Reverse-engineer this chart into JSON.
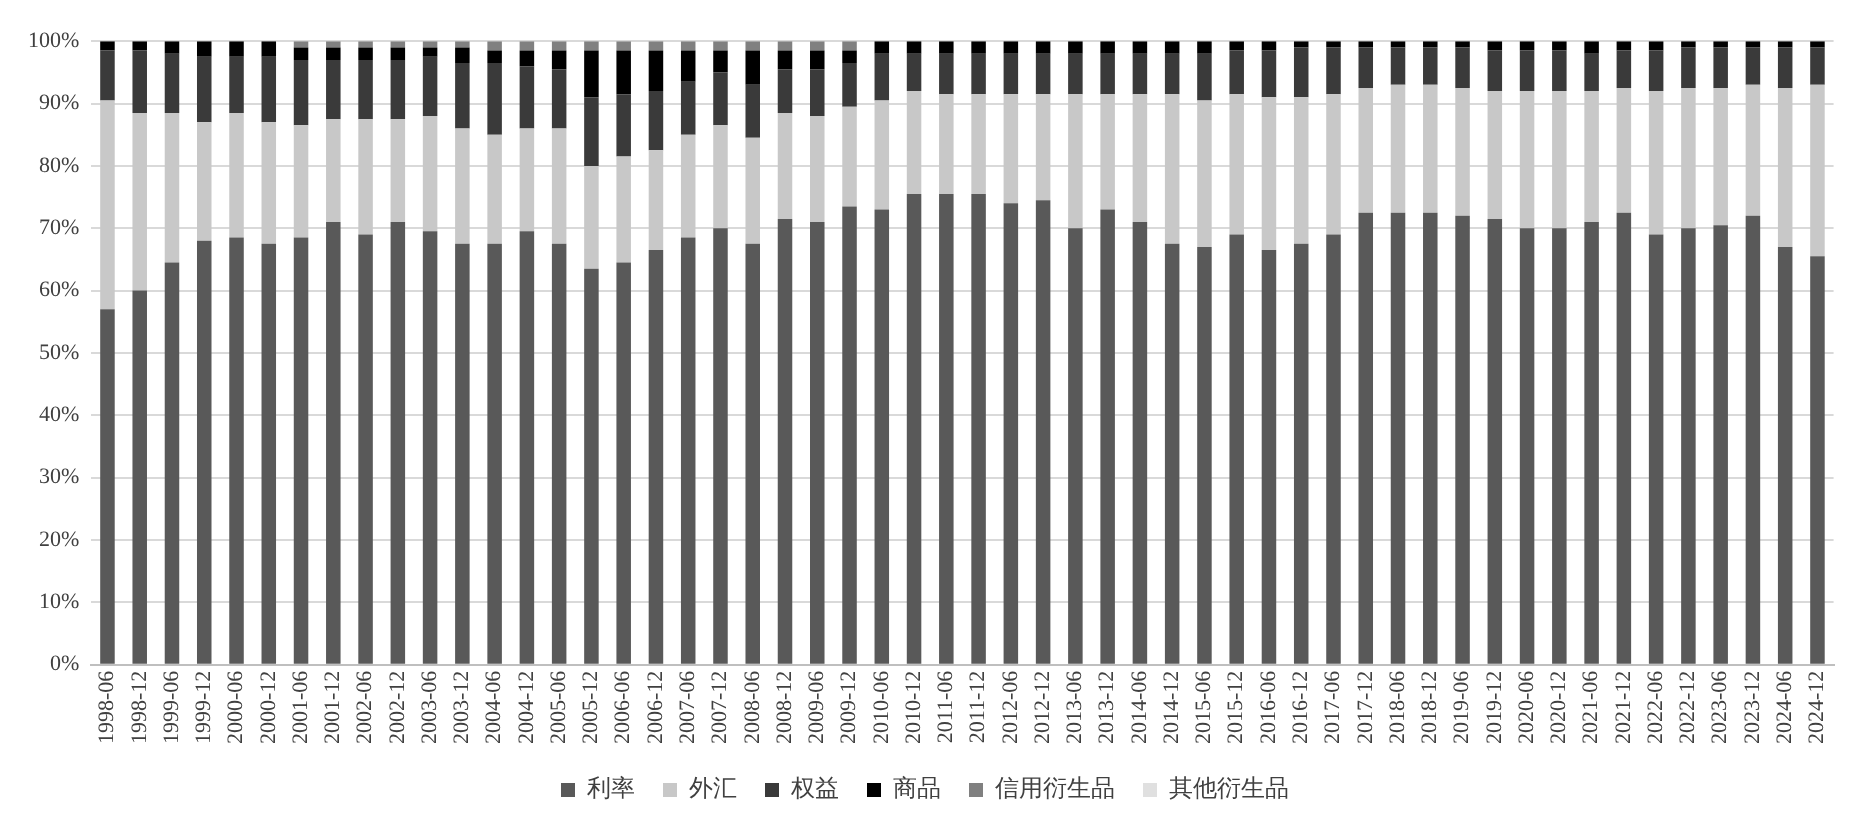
{
  "chart_data": {
    "type": "bar",
    "stacked": true,
    "legend": "bottom",
    "grid": "y",
    "categories": [
      "1998-06",
      "1998-12",
      "1999-06",
      "1999-12",
      "2000-06",
      "2000-12",
      "2001-06",
      "2001-12",
      "2002-06",
      "2002-12",
      "2003-06",
      "2003-12",
      "2004-06",
      "2004-12",
      "2005-06",
      "2005-12",
      "2006-06",
      "2006-12",
      "2007-06",
      "2007-12",
      "2008-06",
      "2008-12",
      "2009-06",
      "2009-12",
      "2010-06",
      "2010-12",
      "2011-06",
      "2011-12",
      "2012-06",
      "2012-12",
      "2013-06",
      "2013-12",
      "2014-06",
      "2014-12",
      "2015-06",
      "2015-12",
      "2016-06",
      "2016-12",
      "2017-06",
      "2017-12",
      "2018-06",
      "2018-12",
      "2019-06",
      "2019-12",
      "2020-06",
      "2020-12",
      "2021-06",
      "2021-12",
      "2022-06",
      "2022-12",
      "2023-06",
      "2023-12",
      "2024-06",
      "2024-12"
    ],
    "ylim": [
      0,
      100
    ],
    "yticks": [
      {
        "value": 0,
        "label": "0%"
      },
      {
        "value": 10,
        "label": "10%"
      },
      {
        "value": 20,
        "label": "20%"
      },
      {
        "value": 30,
        "label": "30%"
      },
      {
        "value": 40,
        "label": "40%"
      },
      {
        "value": 50,
        "label": "50%"
      },
      {
        "value": 60,
        "label": "60%"
      },
      {
        "value": 70,
        "label": "70%"
      },
      {
        "value": 80,
        "label": "80%"
      },
      {
        "value": 90,
        "label": "90%"
      },
      {
        "value": 100,
        "label": "100%"
      }
    ],
    "series": [
      {
        "name": "利率",
        "color": "#595959",
        "values": [
          57,
          60,
          64.5,
          68,
          68.5,
          67.5,
          68.5,
          71,
          69,
          71,
          69.5,
          67.5,
          67.5,
          69.5,
          67.5,
          63.5,
          64.5,
          66.5,
          68.5,
          70,
          67.5,
          71.5,
          71,
          73.5,
          73,
          75.5,
          75.5,
          75.5,
          74,
          74.5,
          70,
          73,
          71,
          67.5,
          67,
          69,
          66.5,
          67.5,
          69,
          72.5,
          72.5,
          72.5,
          72,
          71.5,
          70,
          70,
          71,
          72.5,
          69,
          70,
          70.5,
          72,
          67,
          65.5
        ]
      },
      {
        "name": "外汇",
        "color": "#c8c8c8",
        "values": [
          33.5,
          28.5,
          24,
          19,
          20,
          19.5,
          18,
          16.5,
          18.5,
          16.5,
          18.5,
          18.5,
          17.5,
          16.5,
          18.5,
          16.5,
          17,
          16,
          16.5,
          16.5,
          17,
          17,
          17,
          16,
          17.5,
          16.5,
          16,
          16,
          17.5,
          17,
          21.5,
          18.5,
          20.5,
          24,
          23.5,
          22.5,
          24.5,
          23.5,
          22.5,
          20,
          20.5,
          20.5,
          20.5,
          20.5,
          22,
          22,
          21,
          20,
          23,
          22.5,
          22,
          21,
          25.5,
          27.5
        ]
      },
      {
        "name": "权益",
        "color": "#3a3a3a",
        "values": [
          8,
          10,
          9.5,
          10.5,
          9,
          10.5,
          10.5,
          9.5,
          9.5,
          9.5,
          9.5,
          10.5,
          11.5,
          10,
          9.5,
          11,
          10,
          9.5,
          8.5,
          8.5,
          8.5,
          7,
          7.5,
          7,
          7.5,
          6,
          6.5,
          6.5,
          6.5,
          6.5,
          6.5,
          6.5,
          6.5,
          6.5,
          7.5,
          7,
          7.5,
          8,
          7.5,
          6.5,
          6,
          6,
          6.5,
          6.5,
          6.5,
          6.5,
          6,
          6,
          6.5,
          6.5,
          6.5,
          6,
          6.5,
          6
        ]
      },
      {
        "name": "商品",
        "color": "#000000",
        "values": [
          1.5,
          1.5,
          2,
          2.5,
          2.5,
          2.5,
          2,
          2,
          2,
          2,
          1.5,
          2.5,
          2,
          2.5,
          3,
          7.5,
          7,
          6.5,
          5,
          3.5,
          5.5,
          3,
          3,
          2,
          2,
          2,
          2,
          2,
          2,
          2,
          2,
          2,
          2,
          2,
          2,
          1.5,
          1.5,
          1,
          1,
          1,
          1,
          1,
          1,
          1.5,
          1.5,
          1.5,
          2,
          1.5,
          1.5,
          1,
          1,
          1,
          1,
          1
        ]
      },
      {
        "name": "信用衍生品",
        "color": "#808080",
        "values": [
          0,
          0,
          0,
          0,
          0,
          0,
          1,
          1,
          1,
          1,
          1,
          1,
          1.5,
          1.5,
          1.5,
          1.5,
          1.5,
          1.5,
          1.5,
          1.5,
          1.5,
          1.5,
          1.5,
          1.5,
          0,
          0,
          0,
          0,
          0,
          0,
          0,
          0,
          0,
          0,
          0,
          0,
          0,
          0,
          0,
          0,
          0,
          0,
          0,
          0,
          0,
          0,
          0,
          0,
          0,
          0,
          0,
          0,
          0,
          0
        ]
      },
      {
        "name": "其他衍生品",
        "color": "#e0e0e0",
        "values": [
          0,
          0,
          0,
          0,
          0,
          0,
          0,
          0,
          0,
          0,
          0,
          0,
          0,
          0,
          0,
          0,
          0,
          0,
          0,
          0,
          0,
          0,
          0,
          0,
          0,
          0,
          0,
          0,
          0,
          0,
          0,
          0,
          0,
          0,
          0,
          0,
          0,
          0,
          0,
          0,
          0,
          0,
          0,
          0,
          0,
          0,
          0,
          0,
          0,
          0,
          0,
          0,
          0,
          0
        ]
      }
    ]
  }
}
